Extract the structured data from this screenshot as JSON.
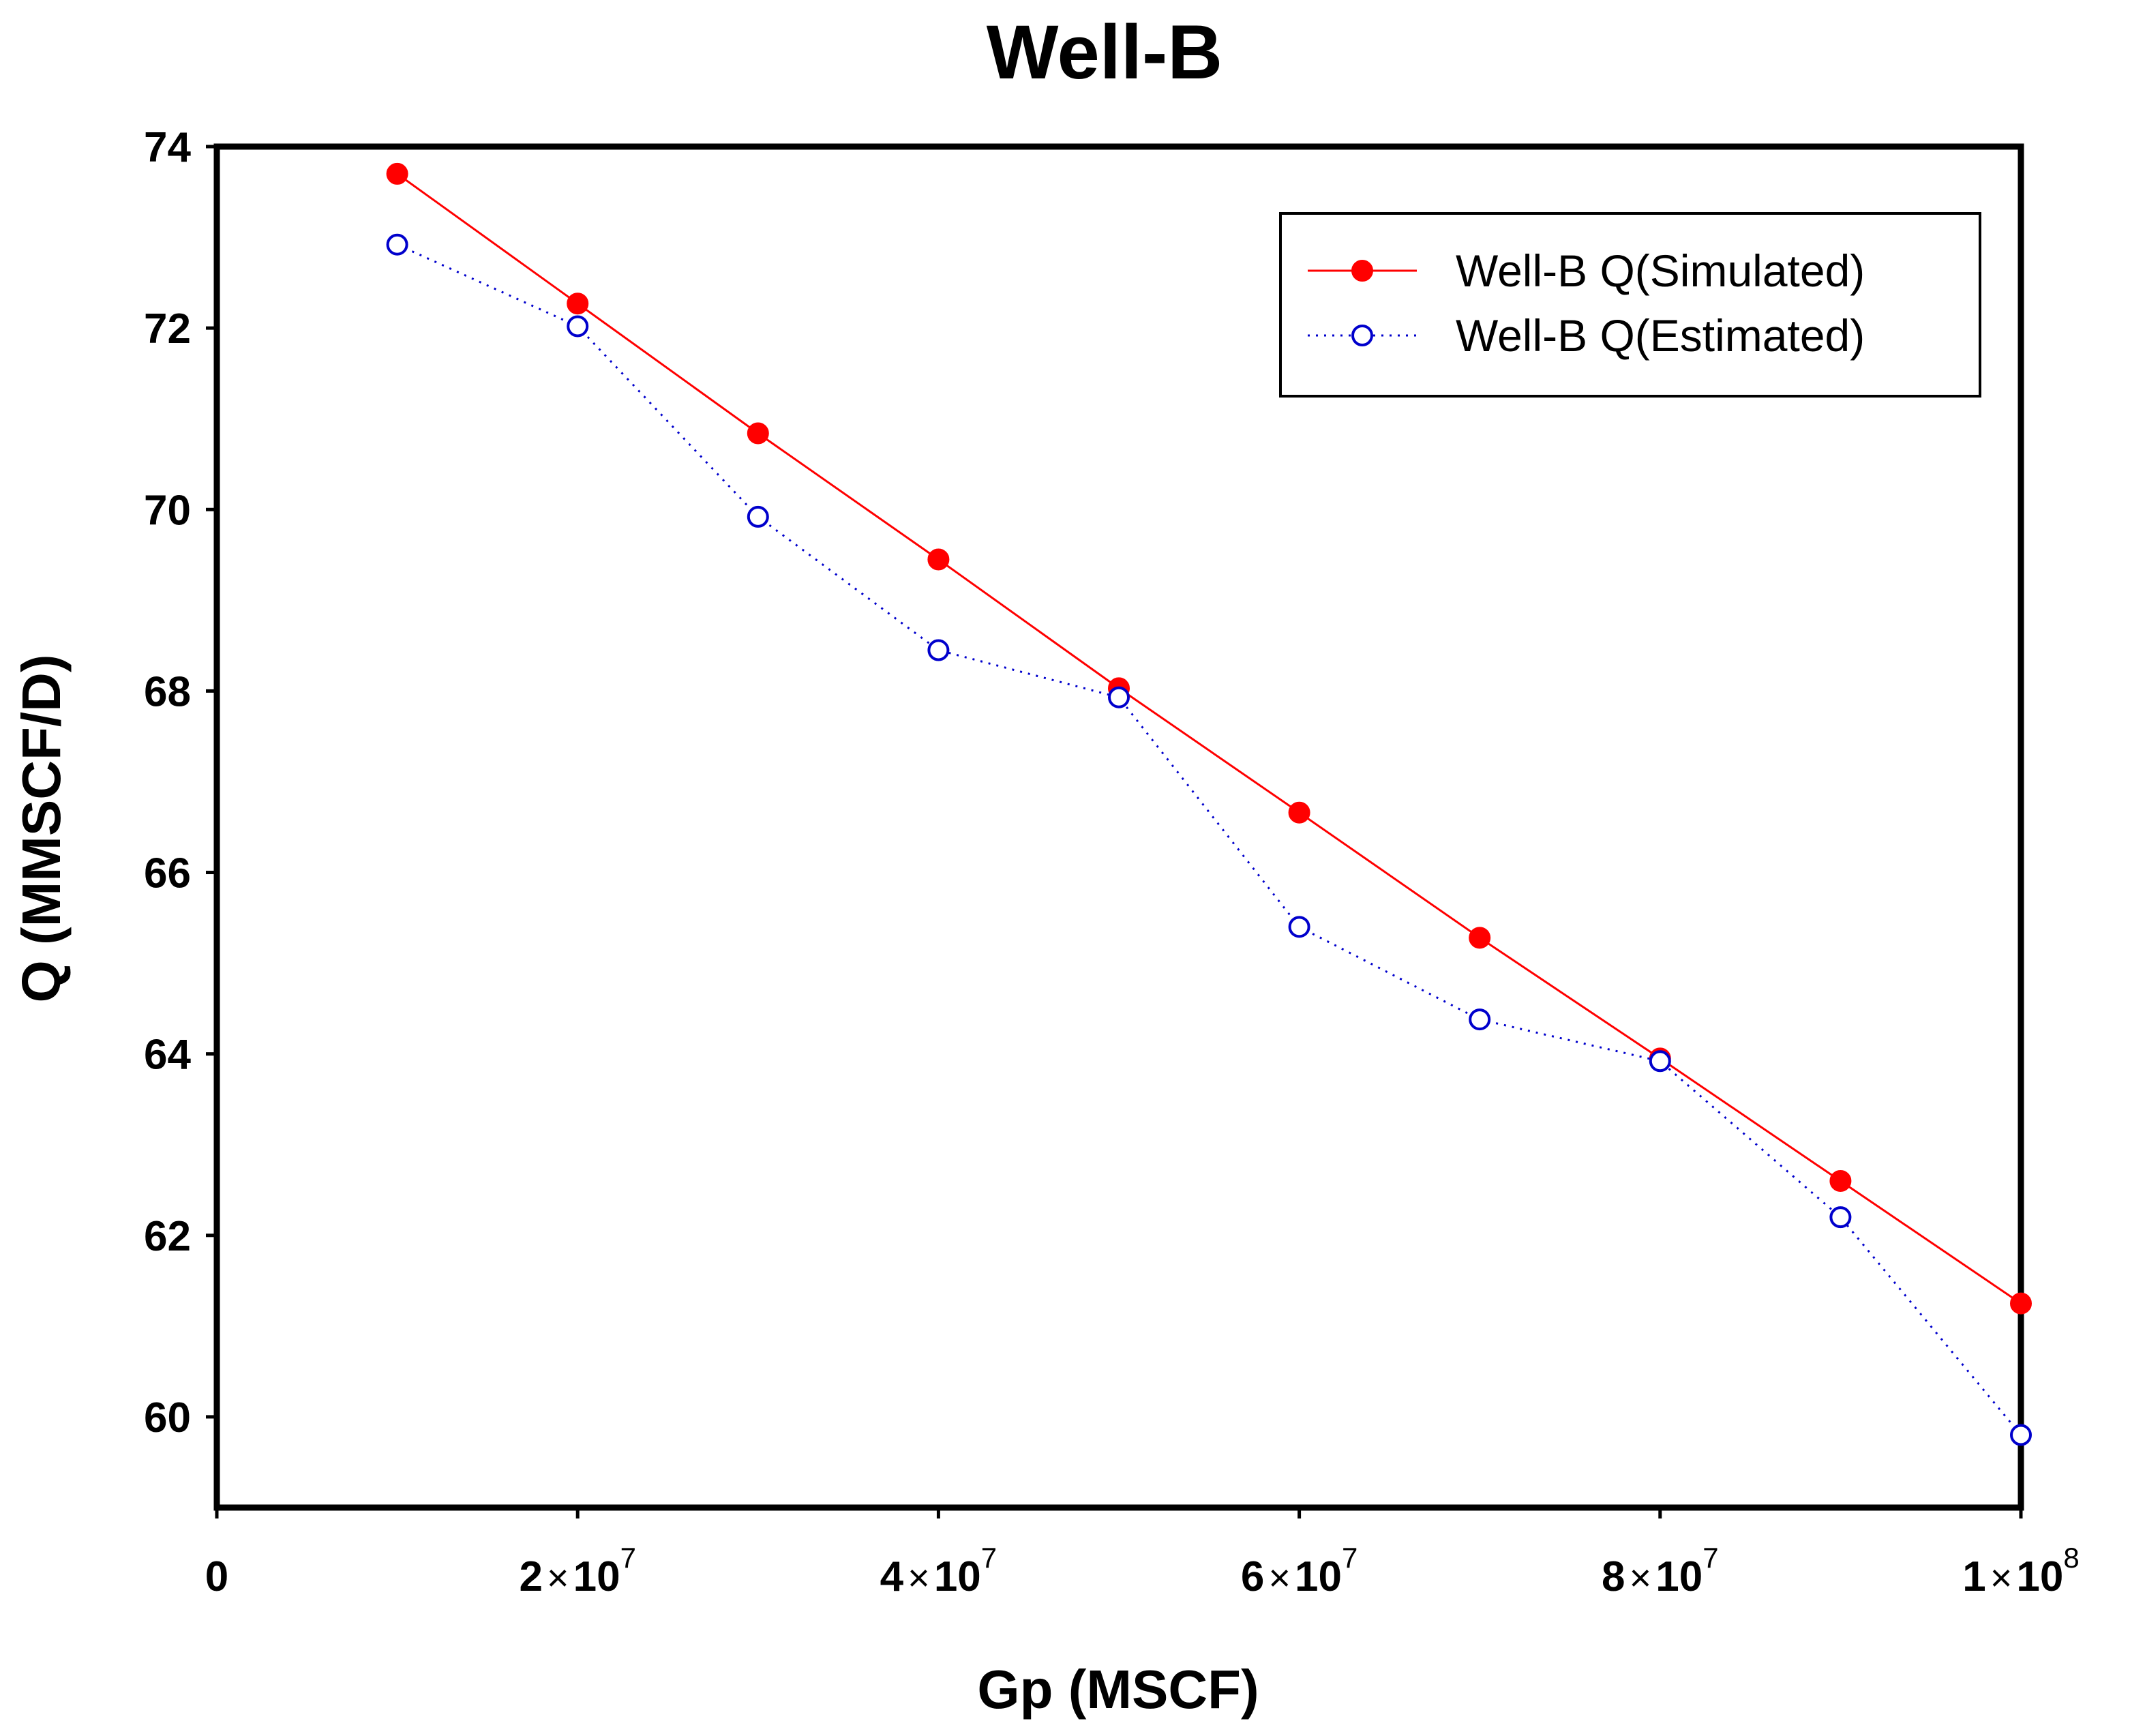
{
  "chart_data": {
    "type": "line",
    "title": "Well-B",
    "xlabel": "Gp (MSCF)",
    "ylabel": "Q (MMSCF/D)",
    "xlim": [
      0,
      100000000
    ],
    "ylim": [
      59,
      74
    ],
    "x_ticks": [
      {
        "value": 0,
        "mantissa": "0",
        "exponent": ""
      },
      {
        "value": 20000000,
        "mantissa": "2",
        "exponent": "7"
      },
      {
        "value": 40000000,
        "mantissa": "4",
        "exponent": "7"
      },
      {
        "value": 60000000,
        "mantissa": "6",
        "exponent": "7"
      },
      {
        "value": 80000000,
        "mantissa": "8",
        "exponent": "7"
      },
      {
        "value": 100000000,
        "mantissa": "1",
        "exponent": "8"
      }
    ],
    "y_ticks": [
      60,
      62,
      64,
      66,
      68,
      70,
      72,
      74
    ],
    "grid": false,
    "legend_position": "top-right",
    "x": [
      10000000,
      20000000,
      30000000,
      40000000,
      50000000,
      60000000,
      70000000,
      80000000,
      90000000,
      100000000
    ],
    "series": [
      {
        "name": "Well-B Q(Simulated)",
        "color": "#ff0000",
        "marker": "filled-circle",
        "line_style": "solid",
        "values": [
          73.7,
          72.27,
          70.84,
          69.45,
          68.03,
          66.66,
          65.28,
          63.95,
          62.6,
          61.25
        ]
      },
      {
        "name": "Well-B Q(Estimated)",
        "color": "#0000cc",
        "marker": "open-circle",
        "line_style": "dotted",
        "values": [
          72.92,
          72.02,
          69.92,
          68.45,
          67.93,
          65.4,
          64.38,
          63.92,
          62.2,
          59.8
        ]
      }
    ]
  }
}
